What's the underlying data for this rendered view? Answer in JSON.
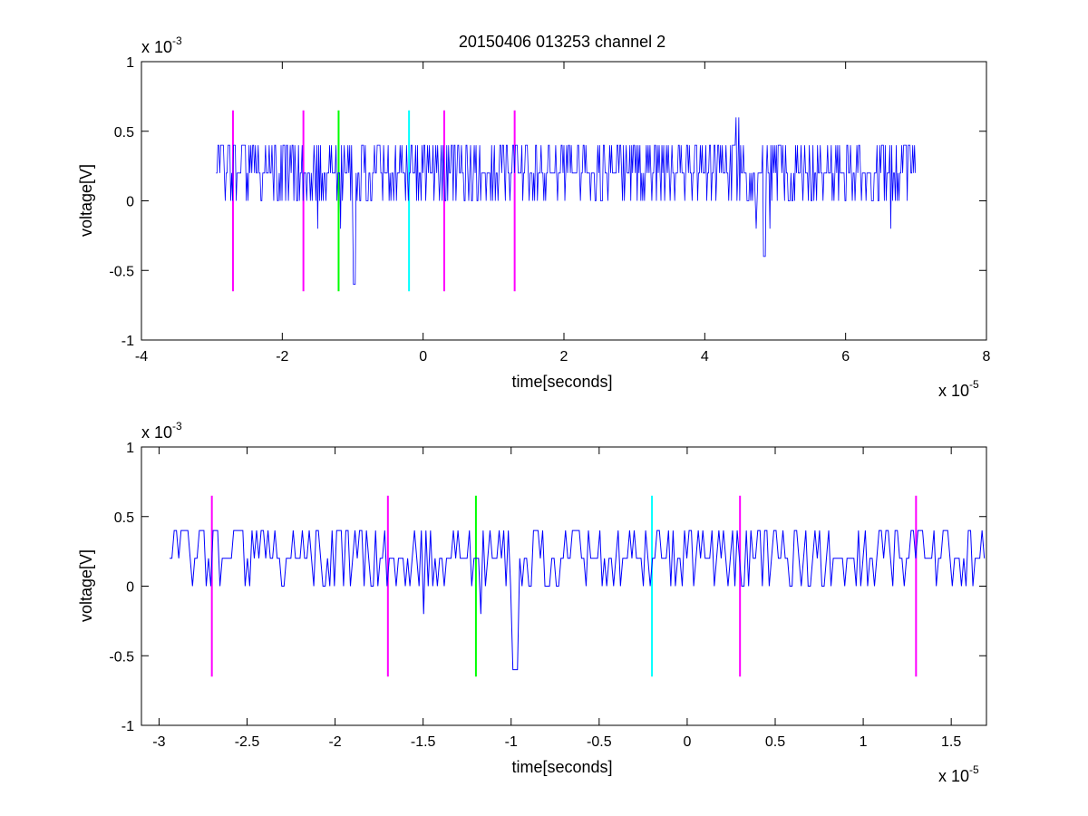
{
  "page": {
    "title": "20150406 013253 channel 2"
  },
  "chart_data": [
    {
      "type": "line",
      "title": "20150406 013253 channel 2",
      "xlabel": "time[seconds]",
      "ylabel": "voltage[V]",
      "x_multiplier_base": "x 10",
      "x_multiplier_exp": "-5",
      "y_multiplier_base": "x 10",
      "y_multiplier_exp": "-3",
      "xlim": [
        -4,
        8
      ],
      "ylim": [
        -1,
        1
      ],
      "xticks": [
        -4,
        -2,
        0,
        2,
        4,
        6,
        8
      ],
      "xtick_labels": [
        "-4",
        "-2",
        "0",
        "2",
        "4",
        "6",
        "8"
      ],
      "yticks": [
        -1,
        -0.5,
        0,
        0.5,
        1
      ],
      "ytick_labels": [
        "-1",
        "-0.5",
        "0",
        "0.5",
        "1"
      ],
      "series": [
        {
          "color": "#0000ff",
          "x_range": [
            -2.94,
            7.0
          ],
          "levels": [
            -0.6,
            -0.4,
            -0.2,
            0,
            0.2,
            0.4,
            0.6
          ]
        }
      ],
      "markers": [
        {
          "x": -2.7,
          "color": "#ff00ff"
        },
        {
          "x": -1.7,
          "color": "#ff00ff"
        },
        {
          "x": -1.2,
          "color": "#00ff00"
        },
        {
          "x": -0.2,
          "color": "#00ffff"
        },
        {
          "x": 0.3,
          "color": "#ff00ff"
        },
        {
          "x": 1.3,
          "color": "#ff00ff"
        }
      ],
      "marker_range": [
        -0.65,
        0.65
      ]
    },
    {
      "type": "line",
      "xlabel": "time[seconds]",
      "ylabel": "voltage[V]",
      "x_multiplier_base": "x 10",
      "x_multiplier_exp": "-5",
      "y_multiplier_base": "x 10",
      "y_multiplier_exp": "-3",
      "xlim": [
        -3.1,
        1.7
      ],
      "ylim": [
        -1,
        1
      ],
      "xticks": [
        -3,
        -2.5,
        -2,
        -1.5,
        -1,
        -0.5,
        0,
        0.5,
        1,
        1.5
      ],
      "xtick_labels": [
        "-3",
        "-2.5",
        "-2",
        "-1.5",
        "-1",
        "-0.5",
        "0",
        "0.5",
        "1",
        "1.5"
      ],
      "yticks": [
        -1,
        -0.5,
        0,
        0.5,
        1
      ],
      "ytick_labels": [
        "-1",
        "-0.5",
        "0",
        "0.5",
        "1"
      ],
      "series": [
        {
          "color": "#0000ff",
          "x_range": [
            -2.94,
            1.7
          ],
          "levels": [
            -0.6,
            -0.4,
            -0.2,
            0,
            0.2,
            0.4,
            0.6
          ]
        }
      ],
      "markers": [
        {
          "x": -2.7,
          "color": "#ff00ff"
        },
        {
          "x": -1.7,
          "color": "#ff00ff"
        },
        {
          "x": -1.2,
          "color": "#00ff00"
        },
        {
          "x": -0.2,
          "color": "#00ffff"
        },
        {
          "x": 0.3,
          "color": "#ff00ff"
        },
        {
          "x": 1.3,
          "color": "#ff00ff"
        }
      ],
      "marker_range": [
        -0.65,
        0.65
      ]
    }
  ]
}
